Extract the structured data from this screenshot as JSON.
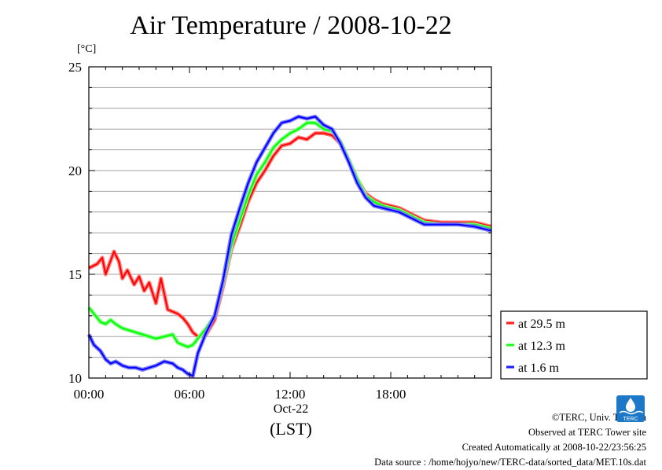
{
  "title": "Air Temperature / 2008-10-22",
  "unit_label": "[°C]",
  "x_date_label": "Oct-22",
  "x_axis_label": "(LST)",
  "credits": {
    "line1": "©TERC, Univ. Tsukuba",
    "line2": "Observed at TERC Tower site",
    "line3": "Created Automatically at 2008-10-22/23:56:25",
    "line4": "Data source : /home/hojyo/new/TERC-data/sorted_data/MET.10s.dat"
  },
  "logo_text": "TERC",
  "colors": {
    "red": "#ff0000",
    "green": "#00ff00",
    "blue": "#0000ff",
    "logo": "#1e78c8"
  },
  "chart_data": {
    "type": "line",
    "title": "Air Temperature / 2008-10-22",
    "xlabel": "(LST)",
    "ylabel": "[°C]",
    "xlim": [
      0,
      24
    ],
    "ylim": [
      10,
      25
    ],
    "grid": true,
    "x_ticks": [
      0,
      6,
      12,
      18
    ],
    "x_tick_labels": [
      "00:00",
      "06:00",
      "12:00",
      "18:00"
    ],
    "y_ticks": [
      10,
      15,
      20,
      25
    ],
    "y_tick_labels": [
      "10",
      "15",
      "20",
      "25"
    ],
    "legend_position": "right",
    "series": [
      {
        "name": "at 29.5 m",
        "color": "#ff0000",
        "x": [
          0,
          0.5,
          0.8,
          1.0,
          1.5,
          1.8,
          2.0,
          2.3,
          2.7,
          3.0,
          3.3,
          3.6,
          4.0,
          4.3,
          4.7,
          5.0,
          5.3,
          5.6,
          5.9,
          6.2,
          6.5,
          7.0,
          7.5,
          8.0,
          8.5,
          9.0,
          9.5,
          10.0,
          10.5,
          11.0,
          11.5,
          12.0,
          12.5,
          13.0,
          13.5,
          14.0,
          14.5,
          15.0,
          15.5,
          16.0,
          16.5,
          17.0,
          17.5,
          18.0,
          18.5,
          19.0,
          19.5,
          20.0,
          21.0,
          22.0,
          23.0,
          23.5,
          24.0
        ],
        "y": [
          15.3,
          15.5,
          15.8,
          15.0,
          16.1,
          15.6,
          14.8,
          15.2,
          14.5,
          14.9,
          14.2,
          14.6,
          13.6,
          14.8,
          13.3,
          13.2,
          13.1,
          12.9,
          12.6,
          12.2,
          12.0,
          12.1,
          12.8,
          14.4,
          16.2,
          17.3,
          18.5,
          19.4,
          20.0,
          20.7,
          21.2,
          21.3,
          21.6,
          21.5,
          21.8,
          21.8,
          21.7,
          21.3,
          20.5,
          19.6,
          18.9,
          18.6,
          18.4,
          18.3,
          18.2,
          18.0,
          17.8,
          17.6,
          17.5,
          17.5,
          17.5,
          17.4,
          17.3
        ]
      },
      {
        "name": "at 12.3 m",
        "color": "#00ff00",
        "x": [
          0,
          0.3,
          0.7,
          1.0,
          1.3,
          1.6,
          2.0,
          2.4,
          2.8,
          3.2,
          3.6,
          4.0,
          4.5,
          5.0,
          5.3,
          5.6,
          5.9,
          6.2,
          6.5,
          7.0,
          7.5,
          8.0,
          8.5,
          9.0,
          9.5,
          10.0,
          10.5,
          11.0,
          11.5,
          12.0,
          12.5,
          13.0,
          13.5,
          14.0,
          14.5,
          15.0,
          15.5,
          16.0,
          16.5,
          17.0,
          17.5,
          18.0,
          18.5,
          19.0,
          19.5,
          20.0,
          21.0,
          22.0,
          23.0,
          23.5,
          24.0
        ],
        "y": [
          13.4,
          13.1,
          12.7,
          12.6,
          12.8,
          12.6,
          12.4,
          12.3,
          12.2,
          12.1,
          12.0,
          11.9,
          12.0,
          12.1,
          11.7,
          11.6,
          11.5,
          11.6,
          11.9,
          12.4,
          13.0,
          14.6,
          16.4,
          17.6,
          18.8,
          19.8,
          20.4,
          21.1,
          21.5,
          21.8,
          22.0,
          22.3,
          22.3,
          22.0,
          21.9,
          21.4,
          20.5,
          19.6,
          18.8,
          18.5,
          18.3,
          18.2,
          18.1,
          17.9,
          17.7,
          17.5,
          17.4,
          17.4,
          17.4,
          17.3,
          17.2
        ]
      },
      {
        "name": "at 1.6 m",
        "color": "#0000ff",
        "x": [
          0,
          0.3,
          0.7,
          1.0,
          1.3,
          1.6,
          2.0,
          2.4,
          2.8,
          3.2,
          3.6,
          4.0,
          4.5,
          5.0,
          5.3,
          5.6,
          5.9,
          6.2,
          6.5,
          7.0,
          7.5,
          8.0,
          8.5,
          9.0,
          9.5,
          10.0,
          10.5,
          11.0,
          11.5,
          12.0,
          12.5,
          13.0,
          13.5,
          14.0,
          14.5,
          15.0,
          15.5,
          16.0,
          16.5,
          17.0,
          17.5,
          18.0,
          18.5,
          19.0,
          19.5,
          20.0,
          21.0,
          22.0,
          23.0,
          23.5,
          24.0
        ],
        "y": [
          12.1,
          11.6,
          11.3,
          10.9,
          10.7,
          10.8,
          10.6,
          10.5,
          10.5,
          10.4,
          10.5,
          10.6,
          10.8,
          10.7,
          10.5,
          10.4,
          10.2,
          10.1,
          11.2,
          12.2,
          13.0,
          14.7,
          16.9,
          18.2,
          19.4,
          20.4,
          21.1,
          21.8,
          22.3,
          22.4,
          22.6,
          22.5,
          22.6,
          22.2,
          22.0,
          21.3,
          20.4,
          19.4,
          18.7,
          18.3,
          18.2,
          18.1,
          18.0,
          17.8,
          17.6,
          17.4,
          17.4,
          17.4,
          17.3,
          17.2,
          17.1
        ]
      }
    ]
  }
}
